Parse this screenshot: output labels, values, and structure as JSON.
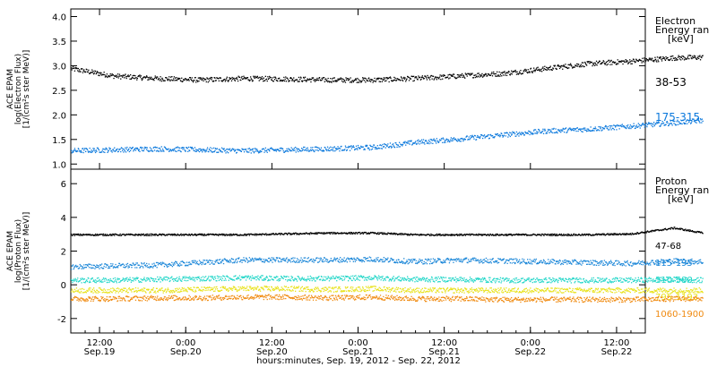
{
  "chart_data": [
    {
      "type": "scatter",
      "panel": "electron",
      "ylabel_lines": [
        "ACE EPAM",
        "log(Electron Flux)",
        "[1/(cm²s ster MeV)]"
      ],
      "ylim": [
        0.95,
        4.1
      ],
      "yticks": [
        "1.0",
        "1.5",
        "2.0",
        "2.5",
        "3.0",
        "3.5",
        "4.0"
      ],
      "ytick_values": [
        1.0,
        1.5,
        2.0,
        2.5,
        3.0,
        3.5,
        4.0
      ],
      "legend_title": [
        "Electron",
        "Energy ran",
        "[keV]"
      ],
      "series": [
        {
          "name": "38-53",
          "color": "#000000",
          "x": [
            0,
            6,
            12,
            18,
            24,
            30,
            36,
            42,
            48,
            54,
            60,
            66,
            72,
            78,
            84,
            88
          ],
          "values": [
            2.95,
            2.8,
            2.75,
            2.72,
            2.75,
            2.74,
            2.72,
            2.72,
            2.75,
            2.8,
            2.85,
            2.95,
            3.05,
            3.1,
            3.17,
            3.18
          ]
        },
        {
          "name": "175-315",
          "color": "#0a78dc",
          "x": [
            0,
            6,
            12,
            18,
            24,
            30,
            36,
            42,
            48,
            54,
            60,
            66,
            72,
            78,
            84,
            88
          ],
          "values": [
            1.28,
            1.3,
            1.32,
            1.3,
            1.28,
            1.3,
            1.32,
            1.35,
            1.45,
            1.52,
            1.6,
            1.68,
            1.72,
            1.78,
            1.85,
            1.9
          ]
        }
      ]
    },
    {
      "type": "scatter",
      "panel": "proton",
      "ylabel_lines": [
        "ACE EPAM",
        "log(Proton Flux)",
        "[1/(cm²s ster MeV)]"
      ],
      "ylim": [
        -2.7,
        6.7
      ],
      "yticks": [
        "-2",
        "0",
        "2",
        "4",
        "6"
      ],
      "ytick_values": [
        -2,
        0,
        2,
        4,
        6
      ],
      "legend_title": [
        "Proton",
        "Energy ran",
        "[keV]"
      ],
      "series": [
        {
          "name": "47-68",
          "color": "#000000",
          "x": [
            0,
            6,
            12,
            18,
            24,
            30,
            36,
            42,
            48,
            54,
            60,
            66,
            72,
            78,
            84,
            88
          ],
          "values": [
            3.0,
            3.0,
            3.0,
            3.0,
            3.0,
            3.05,
            3.1,
            3.1,
            3.0,
            3.0,
            3.0,
            3.0,
            3.0,
            3.05,
            3.4,
            3.1
          ]
        },
        {
          "name": "115-195",
          "color": "#1a86d8",
          "x": [
            0,
            6,
            12,
            18,
            24,
            30,
            36,
            42,
            48,
            54,
            60,
            66,
            72,
            78,
            84,
            88
          ],
          "values": [
            1.1,
            1.15,
            1.2,
            1.35,
            1.5,
            1.5,
            1.5,
            1.55,
            1.4,
            1.5,
            1.45,
            1.4,
            1.35,
            1.3,
            1.45,
            1.4
          ]
        },
        {
          "name": "310-580",
          "color": "#22d6c8",
          "x": [
            0,
            6,
            12,
            18,
            24,
            30,
            36,
            42,
            48,
            54,
            60,
            66,
            72,
            78,
            84,
            88
          ],
          "values": [
            0.3,
            0.3,
            0.35,
            0.4,
            0.45,
            0.4,
            0.4,
            0.45,
            0.35,
            0.35,
            0.3,
            0.3,
            0.3,
            0.3,
            0.35,
            0.3
          ]
        },
        {
          "name": "795-1193",
          "color": "#e8e21a",
          "x": [
            0,
            6,
            12,
            18,
            24,
            30,
            36,
            42,
            48,
            54,
            60,
            66,
            72,
            78,
            84,
            88
          ],
          "values": [
            -0.3,
            -0.3,
            -0.3,
            -0.25,
            -0.2,
            -0.2,
            -0.25,
            -0.2,
            -0.3,
            -0.3,
            -0.3,
            -0.3,
            -0.3,
            -0.3,
            -0.3,
            -0.3
          ]
        },
        {
          "name": "1060-1900",
          "color": "#f08a10",
          "x": [
            0,
            6,
            12,
            18,
            24,
            30,
            36,
            42,
            48,
            54,
            60,
            66,
            72,
            78,
            84,
            88
          ],
          "values": [
            -0.8,
            -0.8,
            -0.75,
            -0.75,
            -0.7,
            -0.7,
            -0.75,
            -0.7,
            -0.8,
            -0.8,
            -0.85,
            -0.85,
            -0.85,
            -0.85,
            -0.8,
            -0.8
          ]
        }
      ]
    }
  ],
  "x_axis": {
    "start": "Sep. 19, 2012 08:00",
    "end": "Sep. 22, 2012 16:00",
    "tick_labels": [
      {
        "time": "12:00",
        "date": "Sep.19",
        "hours": 4
      },
      {
        "time": "0:00",
        "date": "Sep.20",
        "hours": 16
      },
      {
        "time": "12:00",
        "date": "Sep.20",
        "hours": 28
      },
      {
        "time": "0:00",
        "date": "Sep.21",
        "hours": 40
      },
      {
        "time": "12:00",
        "date": "Sep.21",
        "hours": 52
      },
      {
        "time": "0:00",
        "date": "Sep.22",
        "hours": 64
      },
      {
        "time": "12:00",
        "date": "Sep.22",
        "hours": 76
      }
    ],
    "xlabel": "hours:minutes, Sep. 19, 2012 - Sep. 22, 2012",
    "span_hours": 80
  }
}
